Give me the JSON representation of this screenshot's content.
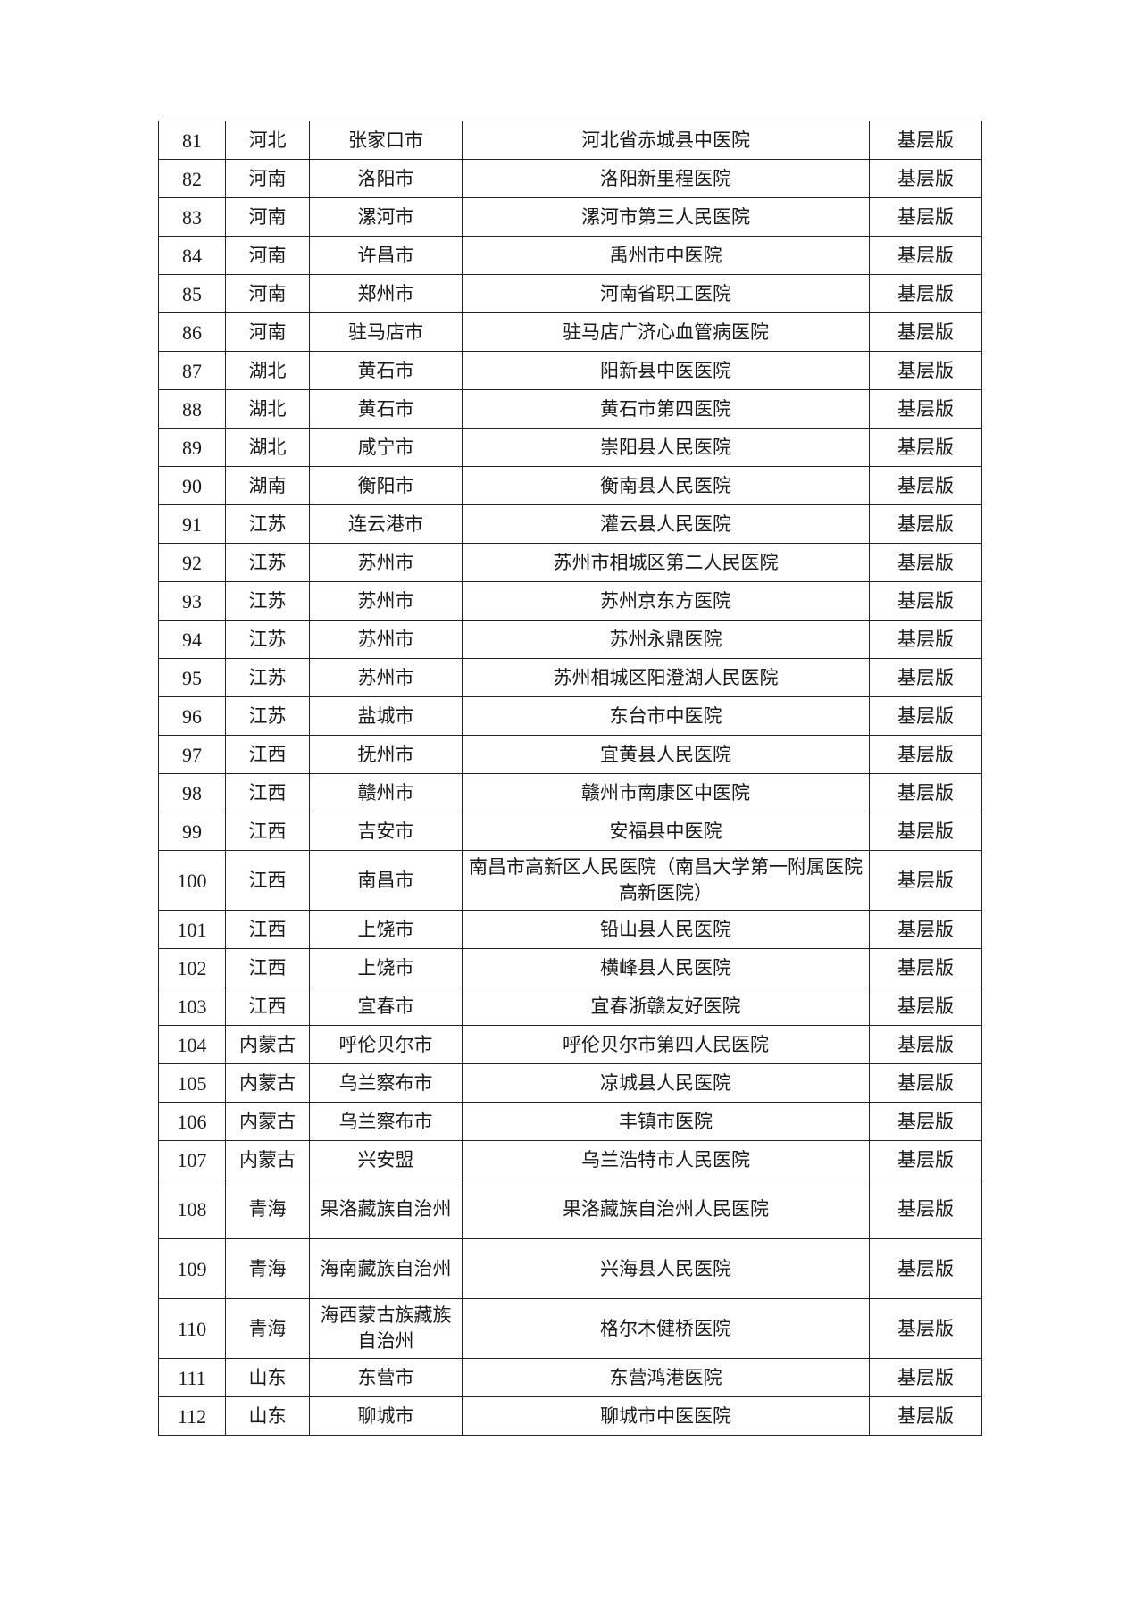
{
  "table": {
    "rows": [
      [
        "81",
        "河北",
        "张家口市",
        "河北省赤城县中医院",
        "基层版"
      ],
      [
        "82",
        "河南",
        "洛阳市",
        "洛阳新里程医院",
        "基层版"
      ],
      [
        "83",
        "河南",
        "漯河市",
        "漯河市第三人民医院",
        "基层版"
      ],
      [
        "84",
        "河南",
        "许昌市",
        "禹州市中医院",
        "基层版"
      ],
      [
        "85",
        "河南",
        "郑州市",
        "河南省职工医院",
        "基层版"
      ],
      [
        "86",
        "河南",
        "驻马店市",
        "驻马店广济心血管病医院",
        "基层版"
      ],
      [
        "87",
        "湖北",
        "黄石市",
        "阳新县中医医院",
        "基层版"
      ],
      [
        "88",
        "湖北",
        "黄石市",
        "黄石市第四医院",
        "基层版"
      ],
      [
        "89",
        "湖北",
        "咸宁市",
        "崇阳县人民医院",
        "基层版"
      ],
      [
        "90",
        "湖南",
        "衡阳市",
        "衡南县人民医院",
        "基层版"
      ],
      [
        "91",
        "江苏",
        "连云港市",
        "灌云县人民医院",
        "基层版"
      ],
      [
        "92",
        "江苏",
        "苏州市",
        "苏州市相城区第二人民医院",
        "基层版"
      ],
      [
        "93",
        "江苏",
        "苏州市",
        "苏州京东方医院",
        "基层版"
      ],
      [
        "94",
        "江苏",
        "苏州市",
        "苏州永鼎医院",
        "基层版"
      ],
      [
        "95",
        "江苏",
        "苏州市",
        "苏州相城区阳澄湖人民医院",
        "基层版"
      ],
      [
        "96",
        "江苏",
        "盐城市",
        "东台市中医院",
        "基层版"
      ],
      [
        "97",
        "江西",
        "抚州市",
        "宜黄县人民医院",
        "基层版"
      ],
      [
        "98",
        "江西",
        "赣州市",
        "赣州市南康区中医院",
        "基层版"
      ],
      [
        "99",
        "江西",
        "吉安市",
        "安福县中医院",
        "基层版"
      ],
      [
        "100",
        "江西",
        "南昌市",
        "南昌市高新区人民医院（南昌大学第一附属医院高新医院）",
        "基层版"
      ],
      [
        "101",
        "江西",
        "上饶市",
        "铅山县人民医院",
        "基层版"
      ],
      [
        "102",
        "江西",
        "上饶市",
        "横峰县人民医院",
        "基层版"
      ],
      [
        "103",
        "江西",
        "宜春市",
        "宜春浙赣友好医院",
        "基层版"
      ],
      [
        "104",
        "内蒙古",
        "呼伦贝尔市",
        "呼伦贝尔市第四人民医院",
        "基层版"
      ],
      [
        "105",
        "内蒙古",
        "乌兰察布市",
        "凉城县人民医院",
        "基层版"
      ],
      [
        "106",
        "内蒙古",
        "乌兰察布市",
        "丰镇市医院",
        "基层版"
      ],
      [
        "107",
        "内蒙古",
        "兴安盟",
        "乌兰浩特市人民医院",
        "基层版"
      ],
      [
        "108",
        "青海",
        "果洛藏族自治州",
        "果洛藏族自治州人民医院",
        "基层版"
      ],
      [
        "109",
        "青海",
        "海南藏族自治州",
        "兴海县人民医院",
        "基层版"
      ],
      [
        "110",
        "青海",
        "海西蒙古族藏族自治州",
        "格尔木健桥医院",
        "基层版"
      ],
      [
        "111",
        "山东",
        "东营市",
        "东营鸿港医院",
        "基层版"
      ],
      [
        "112",
        "山东",
        "聊城市",
        "聊城市中医医院",
        "基层版"
      ]
    ]
  }
}
